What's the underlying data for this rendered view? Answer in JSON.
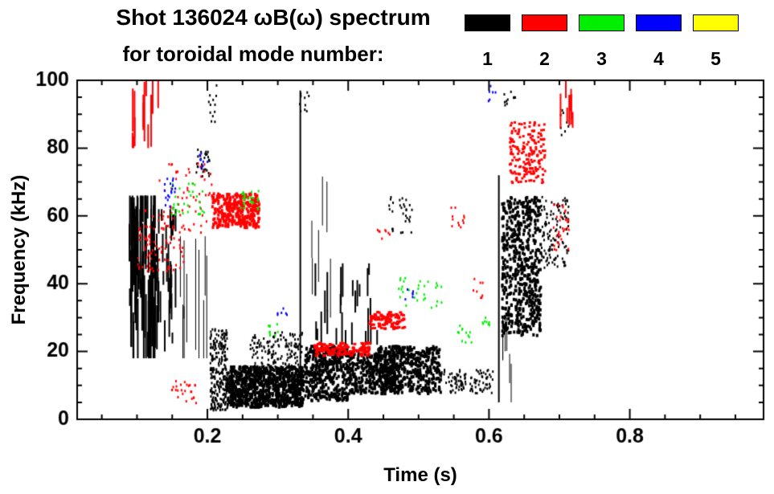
{
  "header": {
    "title": "Shot 136024 ωB(ω) spectrum",
    "subtitle": "for toroidal mode number:"
  },
  "legend": {
    "entries": [
      {
        "label": "1",
        "color": "#000000"
      },
      {
        "label": "2",
        "color": "#ff0000"
      },
      {
        "label": "3",
        "color": "#00ee00"
      },
      {
        "label": "4",
        "color": "#0000ff"
      },
      {
        "label": "5",
        "color": "#ffff00"
      }
    ]
  },
  "chart_data": {
    "type": "scatter",
    "title": "Shot 136024 ωB(ω) spectrum for toroidal mode number: 1 2 3 4 5",
    "xlabel": "Time (s)",
    "ylabel": "Frequency (kHz)",
    "xlim": [
      0.015,
      0.99
    ],
    "ylim": [
      0,
      100
    ],
    "x_minor_step": 0.05,
    "y_minor_step": 5,
    "x_ticks": [
      {
        "v": 0.2,
        "label": "0.2"
      },
      {
        "v": 0.4,
        "label": "0.4"
      },
      {
        "v": 0.6,
        "label": "0.6"
      },
      {
        "v": 0.8,
        "label": "0.8"
      }
    ],
    "y_ticks": [
      {
        "v": 0,
        "label": "0"
      },
      {
        "v": 20,
        "label": "20"
      },
      {
        "v": 40,
        "label": "40"
      },
      {
        "v": 60,
        "label": "60"
      },
      {
        "v": 80,
        "label": "80"
      },
      {
        "v": 100,
        "label": "100"
      }
    ],
    "series": [
      {
        "id": 1,
        "label": "1",
        "color": "#000000"
      },
      {
        "id": 2,
        "label": "2",
        "color": "#ff0000"
      },
      {
        "id": 3,
        "label": "3",
        "color": "#00ee00"
      },
      {
        "id": 4,
        "label": "4",
        "color": "#0000ff"
      },
      {
        "id": 5,
        "label": "5",
        "color": "#ffff00"
      }
    ],
    "clusters": [
      {
        "s": 1,
        "type": "streaks",
        "t": [
          0.088,
          0.125
        ],
        "f": [
          18,
          66
        ],
        "n": 80,
        "len": [
          5,
          30
        ],
        "w": 2
      },
      {
        "s": 1,
        "type": "streaks",
        "t": [
          0.125,
          0.155
        ],
        "f": [
          20,
          62
        ],
        "n": 30,
        "len": [
          3,
          15
        ],
        "w": 2
      },
      {
        "s": 1,
        "type": "streaks",
        "t": [
          0.156,
          0.2
        ],
        "f": [
          18,
          54
        ],
        "n": 10,
        "len": [
          20,
          35
        ],
        "w": 1
      },
      {
        "s": 1,
        "type": "scatter",
        "t": [
          0.183,
          0.202
        ],
        "f": [
          72,
          80
        ],
        "n": 30,
        "sz": [
          2,
          3
        ]
      },
      {
        "s": 1,
        "type": "scatter",
        "t": [
          0.203,
          0.228
        ],
        "f": [
          3,
          27
        ],
        "n": 260,
        "sz": [
          2,
          3
        ]
      },
      {
        "s": 1,
        "type": "scatter",
        "t": [
          0.225,
          0.335
        ],
        "f": [
          4,
          16
        ],
        "n": 900,
        "sz": [
          3,
          4
        ]
      },
      {
        "s": 1,
        "type": "scatter",
        "t": [
          0.26,
          0.335
        ],
        "f": [
          15,
          26
        ],
        "n": 150,
        "sz": [
          2,
          3
        ]
      },
      {
        "s": 1,
        "type": "vline",
        "t": [
          0.332
        ],
        "f": [
          10,
          97
        ],
        "w": 2
      },
      {
        "s": 1,
        "type": "scatter",
        "t": [
          0.337,
          0.4
        ],
        "f": [
          6,
          22
        ],
        "n": 420,
        "sz": [
          3,
          4
        ]
      },
      {
        "s": 1,
        "type": "scatter",
        "t": [
          0.4,
          0.465
        ],
        "f": [
          8,
          20
        ],
        "n": 320,
        "sz": [
          3,
          4
        ]
      },
      {
        "s": 1,
        "type": "streaks",
        "t": [
          0.34,
          0.44
        ],
        "f": [
          22,
          46
        ],
        "n": 25,
        "len": [
          3,
          12
        ],
        "w": 2
      },
      {
        "s": 1,
        "type": "streaks",
        "t": [
          0.345,
          0.375
        ],
        "f": [
          30,
          72
        ],
        "n": 6,
        "len": [
          10,
          30
        ],
        "w": 1
      },
      {
        "s": 1,
        "type": "scatter",
        "t": [
          0.44,
          0.53
        ],
        "f": [
          8,
          22
        ],
        "n": 480,
        "sz": [
          3,
          4
        ]
      },
      {
        "s": 1,
        "type": "scatter",
        "t": [
          0.53,
          0.605
        ],
        "f": [
          8,
          15
        ],
        "n": 110,
        "sz": [
          2,
          3
        ]
      },
      {
        "s": 1,
        "type": "scatter",
        "t": [
          0.455,
          0.49
        ],
        "f": [
          55,
          66
        ],
        "n": 30,
        "sz": [
          2,
          3
        ]
      },
      {
        "s": 1,
        "type": "vline",
        "t": [
          0.614
        ],
        "f": [
          5,
          72
        ],
        "w": 2
      },
      {
        "s": 1,
        "type": "scatter",
        "t": [
          0.617,
          0.672
        ],
        "f": [
          25,
          66
        ],
        "n": 600,
        "sz": [
          3,
          4
        ]
      },
      {
        "s": 1,
        "type": "streaks",
        "t": [
          0.615,
          0.64
        ],
        "f": [
          5,
          30
        ],
        "n": 6,
        "len": [
          5,
          20
        ],
        "w": 1
      },
      {
        "s": 1,
        "type": "scatter",
        "t": [
          0.672,
          0.712
        ],
        "f": [
          45,
          66
        ],
        "n": 120,
        "sz": [
          2,
          3
        ]
      },
      {
        "s": 1,
        "type": "scatter",
        "t": [
          0.198,
          0.212
        ],
        "f": [
          88,
          100
        ],
        "n": 12,
        "sz": [
          2,
          3
        ]
      },
      {
        "s": 1,
        "type": "scatter",
        "t": [
          0.33,
          0.345
        ],
        "f": [
          88,
          97
        ],
        "n": 10,
        "sz": [
          2,
          3
        ]
      },
      {
        "s": 1,
        "type": "scatter",
        "t": [
          0.62,
          0.64
        ],
        "f": [
          93,
          100
        ],
        "n": 10,
        "sz": [
          2,
          3
        ]
      },
      {
        "s": 1,
        "type": "scatter",
        "t": [
          0.7,
          0.712
        ],
        "f": [
          84,
          93
        ],
        "n": 8,
        "sz": [
          2,
          3
        ]
      },
      {
        "s": 2,
        "type": "streaks",
        "t": [
          0.092,
          0.135
        ],
        "f": [
          80,
          100
        ],
        "n": 14,
        "len": [
          5,
          18
        ],
        "w": 2
      },
      {
        "s": 2,
        "type": "scatter",
        "t": [
          0.1,
          0.165
        ],
        "f": [
          44,
          62
        ],
        "n": 90,
        "sz": [
          2,
          3
        ]
      },
      {
        "s": 2,
        "type": "scatter",
        "t": [
          0.13,
          0.205
        ],
        "f": [
          55,
          76
        ],
        "n": 60,
        "sz": [
          2,
          3
        ]
      },
      {
        "s": 2,
        "type": "scatter",
        "t": [
          0.148,
          0.185
        ],
        "f": [
          5,
          12
        ],
        "n": 25,
        "sz": [
          2,
          3
        ]
      },
      {
        "s": 2,
        "type": "scatter",
        "t": [
          0.205,
          0.272
        ],
        "f": [
          57,
          67
        ],
        "n": 300,
        "sz": [
          3,
          4
        ]
      },
      {
        "s": 2,
        "type": "scatter",
        "t": [
          0.35,
          0.428
        ],
        "f": [
          19,
          23
        ],
        "n": 130,
        "sz": [
          4,
          3
        ]
      },
      {
        "s": 2,
        "type": "scatter",
        "t": [
          0.428,
          0.478
        ],
        "f": [
          27,
          32
        ],
        "n": 90,
        "sz": [
          4,
          3
        ]
      },
      {
        "s": 2,
        "type": "scatter",
        "t": [
          0.628,
          0.678
        ],
        "f": [
          70,
          88
        ],
        "n": 180,
        "sz": [
          3,
          3
        ]
      },
      {
        "s": 2,
        "type": "streaks",
        "t": [
          0.695,
          0.718
        ],
        "f": [
          86,
          100
        ],
        "n": 8,
        "len": [
          4,
          12
        ],
        "w": 2
      },
      {
        "s": 2,
        "type": "scatter",
        "t": [
          0.69,
          0.715
        ],
        "f": [
          50,
          64
        ],
        "n": 30,
        "sz": [
          2,
          3
        ]
      },
      {
        "s": 2,
        "type": "scatter",
        "t": [
          0.545,
          0.565
        ],
        "f": [
          57,
          63
        ],
        "n": 12,
        "sz": [
          2,
          3
        ]
      },
      {
        "s": 2,
        "type": "scatter",
        "t": [
          0.575,
          0.59
        ],
        "f": [
          36,
          42
        ],
        "n": 8,
        "sz": [
          2,
          3
        ]
      },
      {
        "s": 2,
        "type": "scatter",
        "t": [
          0.44,
          0.46
        ],
        "f": [
          53,
          58
        ],
        "n": 8,
        "sz": [
          2,
          3
        ]
      },
      {
        "s": 3,
        "type": "scatter",
        "t": [
          0.148,
          0.195
        ],
        "f": [
          60,
          70
        ],
        "n": 30,
        "sz": [
          2,
          3
        ]
      },
      {
        "s": 3,
        "type": "scatter",
        "t": [
          0.243,
          0.272
        ],
        "f": [
          62,
          68
        ],
        "n": 25,
        "sz": [
          2,
          3
        ]
      },
      {
        "s": 3,
        "type": "scatter",
        "t": [
          0.285,
          0.3
        ],
        "f": [
          25,
          29
        ],
        "n": 10,
        "sz": [
          2,
          3
        ]
      },
      {
        "s": 3,
        "type": "scatter",
        "t": [
          0.465,
          0.535
        ],
        "f": [
          33,
          42
        ],
        "n": 30,
        "sz": [
          2,
          3
        ]
      },
      {
        "s": 3,
        "type": "scatter",
        "t": [
          0.553,
          0.578
        ],
        "f": [
          23,
          28
        ],
        "n": 12,
        "sz": [
          2,
          3
        ]
      },
      {
        "s": 3,
        "type": "scatter",
        "t": [
          0.588,
          0.602
        ],
        "f": [
          28,
          31
        ],
        "n": 8,
        "sz": [
          2,
          3
        ]
      },
      {
        "s": 4,
        "type": "scatter",
        "t": [
          0.136,
          0.158
        ],
        "f": [
          63,
          72
        ],
        "n": 18,
        "sz": [
          2,
          3
        ]
      },
      {
        "s": 4,
        "type": "scatter",
        "t": [
          0.188,
          0.2
        ],
        "f": [
          74,
          79
        ],
        "n": 8,
        "sz": [
          2,
          3
        ]
      },
      {
        "s": 4,
        "type": "scatter",
        "t": [
          0.298,
          0.312
        ],
        "f": [
          31,
          34
        ],
        "n": 6,
        "sz": [
          2,
          3
        ]
      },
      {
        "s": 4,
        "type": "scatter",
        "t": [
          0.478,
          0.492
        ],
        "f": [
          35,
          39
        ],
        "n": 6,
        "sz": [
          2,
          3
        ]
      },
      {
        "s": 4,
        "type": "scatter",
        "t": [
          0.598,
          0.612
        ],
        "f": [
          94,
          99
        ],
        "n": 6,
        "sz": [
          2,
          3
        ]
      }
    ]
  }
}
